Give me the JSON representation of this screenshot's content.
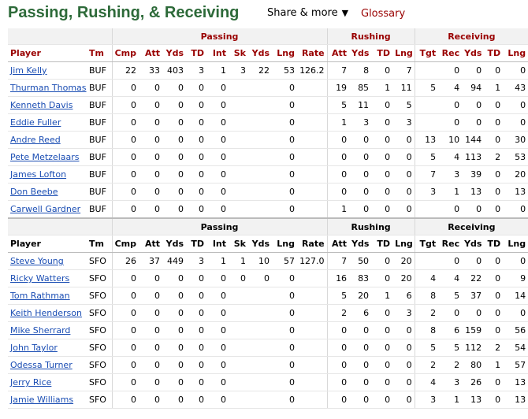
{
  "page": {
    "title": "Passing, Rushing, & Receiving",
    "share_label": "Share & more",
    "share_caret": "▼",
    "glossary_label": "Glossary"
  },
  "table": {
    "groups": {
      "passing": "Passing",
      "rushing": "Rushing",
      "receiving": "Receiving"
    },
    "columns": [
      "Player",
      "Tm",
      "Cmp",
      "Att",
      "Yds",
      "TD",
      "Int",
      "Sk",
      "Yds",
      "Lng",
      "Rate",
      "Att",
      "Yds",
      "TD",
      "Lng",
      "Tgt",
      "Rec",
      "Yds",
      "TD",
      "Lng"
    ],
    "teams": [
      {
        "code": "BUF",
        "rows": [
          [
            "Jim Kelly",
            "BUF",
            "22",
            "33",
            "403",
            "3",
            "1",
            "3",
            "22",
            "53",
            "126.2",
            "7",
            "8",
            "0",
            "7",
            "",
            "0",
            "0",
            "0",
            "0"
          ],
          [
            "Thurman Thomas",
            "BUF",
            "0",
            "0",
            "0",
            "0",
            "0",
            "",
            "",
            "0",
            "",
            "19",
            "85",
            "1",
            "11",
            "5",
            "4",
            "94",
            "1",
            "43"
          ],
          [
            "Kenneth Davis",
            "BUF",
            "0",
            "0",
            "0",
            "0",
            "0",
            "",
            "",
            "0",
            "",
            "5",
            "11",
            "0",
            "5",
            "",
            "0",
            "0",
            "0",
            "0"
          ],
          [
            "Eddie Fuller",
            "BUF",
            "0",
            "0",
            "0",
            "0",
            "0",
            "",
            "",
            "0",
            "",
            "1",
            "3",
            "0",
            "3",
            "",
            "0",
            "0",
            "0",
            "0"
          ],
          [
            "Andre Reed",
            "BUF",
            "0",
            "0",
            "0",
            "0",
            "0",
            "",
            "",
            "0",
            "",
            "0",
            "0",
            "0",
            "0",
            "13",
            "10",
            "144",
            "0",
            "30"
          ],
          [
            "Pete Metzelaars",
            "BUF",
            "0",
            "0",
            "0",
            "0",
            "0",
            "",
            "",
            "0",
            "",
            "0",
            "0",
            "0",
            "0",
            "5",
            "4",
            "113",
            "2",
            "53"
          ],
          [
            "James Lofton",
            "BUF",
            "0",
            "0",
            "0",
            "0",
            "0",
            "",
            "",
            "0",
            "",
            "0",
            "0",
            "0",
            "0",
            "7",
            "3",
            "39",
            "0",
            "20"
          ],
          [
            "Don Beebe",
            "BUF",
            "0",
            "0",
            "0",
            "0",
            "0",
            "",
            "",
            "0",
            "",
            "0",
            "0",
            "0",
            "0",
            "3",
            "1",
            "13",
            "0",
            "13"
          ],
          [
            "Carwell Gardner",
            "BUF",
            "0",
            "0",
            "0",
            "0",
            "0",
            "",
            "",
            "0",
            "",
            "1",
            "0",
            "0",
            "0",
            "",
            "0",
            "0",
            "0",
            "0"
          ]
        ]
      },
      {
        "code": "SFO",
        "rows": [
          [
            "Steve Young",
            "SFO",
            "26",
            "37",
            "449",
            "3",
            "1",
            "1",
            "10",
            "57",
            "127.0",
            "7",
            "50",
            "0",
            "20",
            "",
            "0",
            "0",
            "0",
            "0"
          ],
          [
            "Ricky Watters",
            "SFO",
            "0",
            "0",
            "0",
            "0",
            "0",
            "0",
            "0",
            "0",
            "",
            "16",
            "83",
            "0",
            "20",
            "4",
            "4",
            "22",
            "0",
            "9"
          ],
          [
            "Tom Rathman",
            "SFO",
            "0",
            "0",
            "0",
            "0",
            "0",
            "",
            "",
            "0",
            "",
            "5",
            "20",
            "1",
            "6",
            "8",
            "5",
            "37",
            "0",
            "14"
          ],
          [
            "Keith Henderson",
            "SFO",
            "0",
            "0",
            "0",
            "0",
            "0",
            "",
            "",
            "0",
            "",
            "2",
            "6",
            "0",
            "3",
            "2",
            "0",
            "0",
            "0",
            "0"
          ],
          [
            "Mike Sherrard",
            "SFO",
            "0",
            "0",
            "0",
            "0",
            "0",
            "",
            "",
            "0",
            "",
            "0",
            "0",
            "0",
            "0",
            "8",
            "6",
            "159",
            "0",
            "56"
          ],
          [
            "John Taylor",
            "SFO",
            "0",
            "0",
            "0",
            "0",
            "0",
            "",
            "",
            "0",
            "",
            "0",
            "0",
            "0",
            "0",
            "5",
            "5",
            "112",
            "2",
            "54"
          ],
          [
            "Odessa Turner",
            "SFO",
            "0",
            "0",
            "0",
            "0",
            "0",
            "",
            "",
            "0",
            "",
            "0",
            "0",
            "0",
            "0",
            "2",
            "2",
            "80",
            "1",
            "57"
          ],
          [
            "Jerry Rice",
            "SFO",
            "0",
            "0",
            "0",
            "0",
            "0",
            "",
            "",
            "0",
            "",
            "0",
            "0",
            "0",
            "0",
            "4",
            "3",
            "26",
            "0",
            "13"
          ],
          [
            "Jamie Williams",
            "SFO",
            "0",
            "0",
            "0",
            "0",
            "0",
            "",
            "",
            "0",
            "",
            "0",
            "0",
            "0",
            "0",
            "3",
            "1",
            "13",
            "0",
            "13"
          ]
        ]
      }
    ]
  }
}
